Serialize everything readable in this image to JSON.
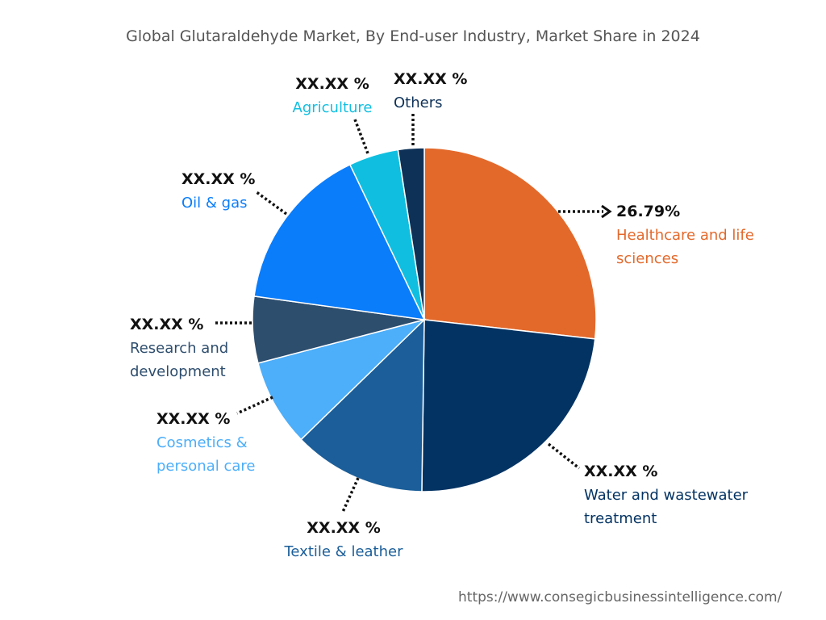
{
  "chart_data": {
    "type": "pie",
    "title": "Global Glutaraldehyde Market, By End-user Industry, Market Share in 2024",
    "slices": [
      {
        "label": "Healthcare and life sciences",
        "value": 26.79,
        "display": "26.79%",
        "color": "#E3692B"
      },
      {
        "label": "Water and wastewater treatment",
        "value": 23.44,
        "display": "XX.XX %",
        "color": "#033363"
      },
      {
        "label": "Textile & leather",
        "value": 12.5,
        "display": "XX.XX %",
        "color": "#1B5E99"
      },
      {
        "label": "Cosmetics & personal care",
        "value": 8.2,
        "display": "XX.XX %",
        "color": "#4DAEF9"
      },
      {
        "label": "Research and development",
        "value": 6.25,
        "display": "XX.XX %",
        "color": "#2E4E6E"
      },
      {
        "label": "Oil & gas",
        "value": 15.7,
        "display": "XX.XX %",
        "color": "#0A7DFB"
      },
      {
        "label": "Agriculture",
        "value": 4.67,
        "display": "XX.XX %",
        "color": "#10BFE0"
      },
      {
        "label": "Others",
        "value": 2.45,
        "display": "XX.XX %",
        "color": "#0E3158"
      }
    ]
  },
  "source": "https://www.consegicbusinessintelligence.com/"
}
